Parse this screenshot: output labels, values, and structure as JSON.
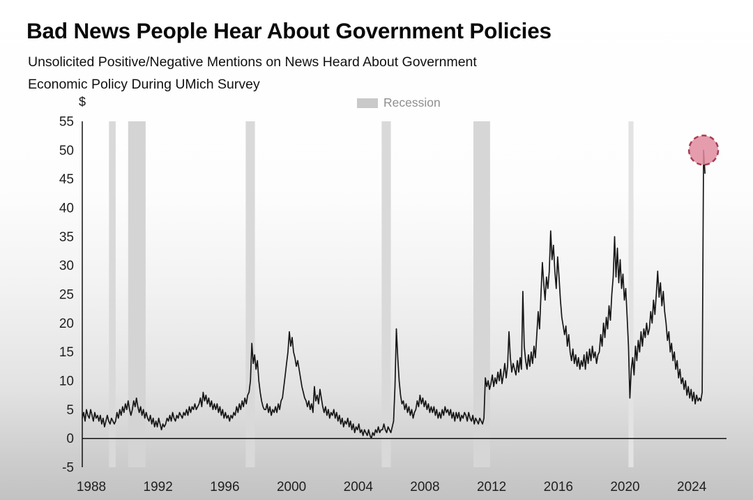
{
  "chart_data": {
    "type": "line",
    "title": "Bad News People Hear About Government Policies",
    "subtitle_line1": "Unsolicited Positive/Negative Mentions on News Heard About Government",
    "subtitle_line2": "Economic Policy During UMich Survey",
    "legend": [
      {
        "label": "Recession",
        "swatch_color": "#c9c9c9"
      }
    ],
    "legend_position": "top-center",
    "grid": "off",
    "y_axis": {
      "unit_label": "$",
      "min": -5,
      "max": 55,
      "ticks": [
        -5,
        0,
        5,
        10,
        15,
        20,
        25,
        30,
        35,
        40,
        45,
        50,
        55
      ]
    },
    "x_axis": {
      "min": 1988,
      "max": 2026.5,
      "ticks": [
        1988,
        1992,
        1996,
        2000,
        2004,
        2008,
        2012,
        2016,
        2020,
        2024
      ]
    },
    "recession_bands": [
      {
        "from": 1989.6,
        "to": 1990.0,
        "color": "#d9d9d9"
      },
      {
        "from": 1990.75,
        "to": 1991.8,
        "color": "#d4d4d4"
      },
      {
        "from": 1997.8,
        "to": 1998.35,
        "color": "#d9d9d9"
      },
      {
        "from": 2005.95,
        "to": 2006.5,
        "color": "#d9d9d9"
      },
      {
        "from": 2011.45,
        "to": 2012.45,
        "color": "#d6d6d6"
      },
      {
        "from": 2020.75,
        "to": 2021.05,
        "color": "#e3e3e3"
      }
    ],
    "series": {
      "start_year": 1988,
      "points_per_year": 12,
      "color": "#161616",
      "values": [
        3.5,
        4.5,
        3,
        5,
        4,
        3.5,
        5,
        4,
        3,
        4.5,
        3.5,
        4,
        3,
        4,
        2.5,
        3.5,
        2,
        3,
        4,
        3,
        2.5,
        3.5,
        3,
        2.5,
        3,
        4.5,
        3.5,
        5,
        4,
        5.5,
        4.5,
        6,
        5,
        6.5,
        5,
        4,
        5,
        6.5,
        5.5,
        7,
        5.5,
        4.5,
        5.5,
        4,
        5,
        3.5,
        4.5,
        3.5,
        3,
        4,
        2.5,
        3.5,
        2,
        3,
        2,
        3.5,
        2.5,
        1.5,
        2.5,
        2,
        2.5,
        3.5,
        3,
        4,
        3,
        4.5,
        3.5,
        3,
        4,
        3.5,
        4.5,
        4,
        3.5,
        4.5,
        4,
        5,
        4,
        5.5,
        4.5,
        5.5,
        5,
        6,
        5,
        5.5,
        6,
        7,
        5.5,
        8,
        6.5,
        7.5,
        6,
        7,
        5.5,
        6.5,
        5,
        6,
        5,
        6,
        4.5,
        5.5,
        4,
        5,
        3.5,
        4.5,
        3.5,
        4,
        3,
        4,
        3.5,
        4.5,
        4,
        5.5,
        4.5,
        6,
        5,
        6.5,
        5.5,
        7,
        6,
        7.5,
        8,
        10,
        16.5,
        13,
        14.5,
        12,
        13.5,
        10,
        8,
        6.5,
        5.5,
        5,
        5,
        6,
        4.5,
        5.5,
        4,
        5,
        4.5,
        5.5,
        4.5,
        6,
        5,
        6.5,
        7,
        9,
        11,
        13,
        15,
        18.5,
        16,
        17.5,
        15,
        14,
        12.5,
        13.5,
        12,
        10.5,
        9,
        8,
        7,
        6.5,
        5.5,
        6.5,
        5,
        6,
        4.5,
        9,
        6.5,
        7.5,
        6,
        8.5,
        7,
        5.5,
        4.5,
        5.5,
        4,
        5,
        3.5,
        4.5,
        4,
        5,
        3.5,
        4.5,
        3,
        4,
        2.5,
        3.5,
        2,
        3,
        2.5,
        3.5,
        2,
        3,
        1.5,
        2.5,
        1,
        2,
        1.5,
        2.5,
        1,
        1.5,
        0.5,
        1.5,
        1,
        0.5,
        1.5,
        0.5,
        0,
        1,
        0.5,
        1.5,
        1,
        2,
        1,
        1.5,
        1.5,
        2.5,
        1.5,
        1,
        2,
        1.5,
        1,
        2,
        3,
        9,
        19,
        14,
        10,
        7.5,
        6,
        6.5,
        5,
        6,
        4.5,
        5.5,
        4,
        5,
        3.5,
        4.5,
        5,
        6.5,
        5.5,
        7.5,
        6,
        7,
        5.5,
        6.5,
        5,
        6,
        4.5,
        5.5,
        4.5,
        5.5,
        4,
        5,
        3.5,
        4.5,
        3.5,
        5,
        4,
        5.5,
        4.5,
        5,
        4,
        5,
        3.5,
        4.5,
        3,
        4.5,
        3.5,
        4.5,
        3,
        4,
        3.5,
        4.5,
        4,
        3,
        4.5,
        3.5,
        3,
        4,
        2.5,
        3.5,
        3,
        2.5,
        3.5,
        3,
        2.5,
        3.5,
        10.5,
        9,
        10,
        8.5,
        9.5,
        11,
        9,
        10.5,
        9.5,
        11.5,
        10,
        12,
        9.5,
        11,
        13,
        10.5,
        12.5,
        18.5,
        14,
        11.5,
        13,
        12,
        11,
        13.5,
        11.5,
        14,
        12,
        25.5,
        16,
        13.5,
        12,
        14.5,
        12.5,
        15,
        13,
        16,
        14,
        18,
        22,
        19,
        25,
        30.5,
        27,
        24,
        28,
        26,
        29,
        36,
        31,
        33.5,
        29,
        26,
        31.5,
        28,
        24,
        21,
        19.5,
        18,
        19.5,
        16,
        18,
        15,
        13.5,
        15.5,
        13,
        14.5,
        12.5,
        14,
        12,
        13.5,
        12.5,
        14.5,
        12,
        15,
        13,
        15.5,
        13.5,
        16,
        14,
        15,
        13,
        14.5,
        15,
        18,
        16,
        20,
        17.5,
        21,
        19,
        23,
        20.5,
        25,
        28,
        35,
        28,
        33,
        27,
        31,
        26,
        28.5,
        24,
        26,
        21,
        16,
        7,
        12,
        14,
        11,
        16,
        13.5,
        17,
        15,
        18.5,
        16,
        19,
        17.5,
        20,
        18,
        19,
        22,
        20,
        24,
        21.5,
        25,
        29,
        24.5,
        27,
        23,
        25.5,
        22,
        20,
        17,
        18.5,
        15,
        16.5,
        13.5,
        15,
        12,
        13.5,
        10.5,
        12,
        9.5,
        10.5,
        8.5,
        10,
        7.5,
        9,
        7,
        8.5,
        6.5,
        8,
        6,
        7.5,
        6.5,
        7,
        6.5,
        8,
        50,
        46
      ]
    },
    "highlight": {
      "x_year": 2025.25,
      "value": 50,
      "radius": 21,
      "fill": "#e18ca0",
      "fill_opacity": 0.85,
      "stroke": "#a63e53",
      "style": "dashed"
    },
    "colors": {
      "axis": "#111111",
      "tick_text": "#1f1f1f"
    }
  }
}
